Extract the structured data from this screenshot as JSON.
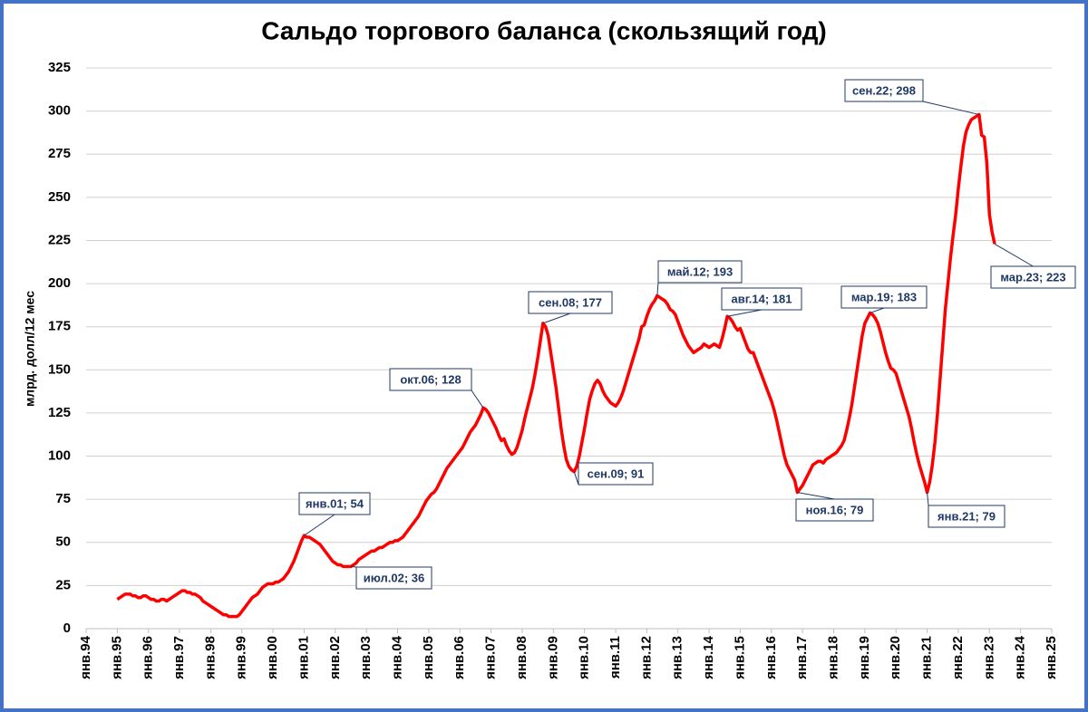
{
  "chart_data": {
    "type": "line",
    "title": "Сальдо торгового баланса (скользящий год)",
    "y_label": "млрд. долл/12 мес",
    "ylim": [
      0,
      325
    ],
    "yticks": [
      0,
      25,
      50,
      75,
      100,
      125,
      150,
      175,
      200,
      225,
      250,
      275,
      300,
      325
    ],
    "grid": true,
    "categories": [
      "янв.94",
      null,
      null,
      null,
      null,
      null,
      null,
      null,
      null,
      null,
      null,
      null,
      "янв.95",
      null,
      null,
      null,
      null,
      null,
      null,
      null,
      null,
      null,
      null,
      null,
      "янв.96",
      null,
      null,
      null,
      null,
      null,
      null,
      null,
      null,
      null,
      null,
      null,
      "янв.97",
      null,
      null,
      null,
      null,
      null,
      null,
      null,
      null,
      null,
      null,
      null,
      "янв.98",
      null,
      null,
      null,
      null,
      null,
      null,
      null,
      null,
      null,
      null,
      null,
      "янв.99",
      null,
      null,
      null,
      null,
      null,
      null,
      null,
      null,
      null,
      null,
      null,
      "янв.00",
      null,
      null,
      null,
      null,
      null,
      null,
      null,
      null,
      null,
      null,
      null,
      "янв.01",
      null,
      null,
      null,
      null,
      null,
      null,
      null,
      null,
      null,
      null,
      null,
      "янв.02",
      null,
      null,
      null,
      null,
      null,
      null,
      null,
      null,
      null,
      null,
      null,
      "янв.03",
      null,
      null,
      null,
      null,
      null,
      null,
      null,
      null,
      null,
      null,
      null,
      "янв.04",
      null,
      null,
      null,
      null,
      null,
      null,
      null,
      null,
      null,
      null,
      null,
      "янв.05",
      null,
      null,
      null,
      null,
      null,
      null,
      null,
      null,
      null,
      null,
      null,
      "янв.06",
      null,
      null,
      null,
      null,
      null,
      null,
      null,
      null,
      null,
      null,
      null,
      "янв.07",
      null,
      null,
      null,
      null,
      null,
      null,
      null,
      null,
      null,
      null,
      null,
      "янв.08",
      null,
      null,
      null,
      null,
      null,
      null,
      null,
      null,
      null,
      null,
      null,
      "янв.09",
      null,
      null,
      null,
      null,
      null,
      null,
      null,
      null,
      null,
      null,
      null,
      "янв.10",
      null,
      null,
      null,
      null,
      null,
      null,
      null,
      null,
      null,
      null,
      null,
      "янв.11",
      null,
      null,
      null,
      null,
      null,
      null,
      null,
      null,
      null,
      null,
      null,
      "янв.12",
      null,
      null,
      null,
      null,
      null,
      null,
      null,
      null,
      null,
      null,
      null,
      "янв.13",
      null,
      null,
      null,
      null,
      null,
      null,
      null,
      null,
      null,
      null,
      null,
      "янв.14",
      null,
      null,
      null,
      null,
      null,
      null,
      null,
      null,
      null,
      null,
      null,
      "янв.15",
      null,
      null,
      null,
      null,
      null,
      null,
      null,
      null,
      null,
      null,
      null,
      "янв.16",
      null,
      null,
      null,
      null,
      null,
      null,
      null,
      null,
      null,
      null,
      null,
      "янв.17",
      null,
      null,
      null,
      null,
      null,
      null,
      null,
      null,
      null,
      null,
      null,
      "янв.18",
      null,
      null,
      null,
      null,
      null,
      null,
      null,
      null,
      null,
      null,
      null,
      "янв.19",
      null,
      null,
      null,
      null,
      null,
      null,
      null,
      null,
      null,
      null,
      null,
      "янв.20",
      null,
      null,
      null,
      null,
      null,
      null,
      null,
      null,
      null,
      null,
      null,
      "янв.21",
      null,
      null,
      null,
      null,
      null,
      null,
      null,
      null,
      null,
      null,
      null,
      "янв.22",
      null,
      null,
      null,
      null,
      null,
      null,
      null,
      null,
      null,
      null,
      null,
      "янв.23",
      null,
      null,
      null,
      null,
      null,
      null,
      null,
      null,
      null,
      null,
      null,
      "янв.24",
      null,
      null,
      null,
      null,
      null,
      null,
      null,
      null,
      null,
      null,
      null,
      "янв.25"
    ],
    "series": [
      {
        "color": "#ff0000",
        "values": [
          null,
          null,
          null,
          null,
          null,
          null,
          null,
          null,
          null,
          null,
          null,
          null,
          17,
          18,
          19,
          20,
          20,
          20,
          19,
          19,
          18,
          18,
          19,
          19,
          18,
          17,
          17,
          16,
          16,
          17,
          17,
          16,
          17,
          18,
          19,
          20,
          21,
          22,
          22,
          21,
          21,
          20,
          20,
          19,
          18,
          16,
          15,
          14,
          13,
          12,
          11,
          10,
          9,
          8,
          8,
          7,
          7,
          7,
          7,
          8,
          10,
          12,
          14,
          16,
          18,
          19,
          20,
          22,
          24,
          25,
          26,
          26,
          26,
          27,
          27,
          28,
          29,
          31,
          33,
          36,
          39,
          43,
          47,
          51,
          54,
          53,
          53,
          52,
          51,
          50,
          49,
          47,
          45,
          43,
          41,
          39,
          38,
          37,
          37,
          36,
          36,
          36,
          36,
          37,
          38,
          40,
          41,
          42,
          43,
          44,
          45,
          45,
          46,
          47,
          47,
          48,
          49,
          50,
          50,
          51,
          51,
          52,
          53,
          55,
          57,
          59,
          61,
          63,
          65,
          68,
          71,
          74,
          76,
          78,
          79,
          81,
          84,
          87,
          90,
          93,
          95,
          97,
          99,
          101,
          103,
          105,
          108,
          111,
          114,
          116,
          118,
          121,
          124,
          128,
          127,
          125,
          122,
          119,
          116,
          112,
          109,
          110,
          106,
          103,
          101,
          102,
          105,
          110,
          115,
          122,
          128,
          134,
          140,
          148,
          157,
          167,
          177,
          175,
          170,
          160,
          150,
          140,
          128,
          116,
          106,
          98,
          94,
          92,
          91,
          94,
          100,
          108,
          116,
          125,
          133,
          138,
          142,
          144,
          142,
          138,
          135,
          133,
          131,
          130,
          129,
          131,
          134,
          138,
          143,
          148,
          153,
          158,
          163,
          168,
          175,
          176,
          181,
          185,
          188,
          190,
          193,
          192,
          191,
          190,
          188,
          185,
          184,
          182,
          178,
          174,
          170,
          167,
          164,
          162,
          160,
          161,
          162,
          163,
          165,
          164,
          163,
          164,
          165,
          164,
          163,
          168,
          174,
          181,
          180,
          178,
          175,
          173,
          174,
          170,
          166,
          162,
          160,
          160,
          156,
          152,
          148,
          144,
          140,
          136,
          132,
          127,
          121,
          114,
          107,
          100,
          95,
          92,
          89,
          86,
          79,
          81,
          83,
          86,
          89,
          92,
          95,
          96,
          97,
          97,
          96,
          98,
          99,
          100,
          101,
          102,
          104,
          106,
          109,
          115,
          122,
          130,
          140,
          150,
          160,
          170,
          177,
          180,
          183,
          182,
          180,
          177,
          172,
          166,
          160,
          155,
          151,
          150,
          148,
          143,
          138,
          133,
          128,
          123,
          116,
          108,
          101,
          95,
          90,
          85,
          79,
          85,
          95,
          108,
          125,
          145,
          165,
          185,
          200,
          215,
          228,
          240,
          255,
          268,
          280,
          288,
          292,
          295,
          296,
          297,
          298,
          286,
          285,
          270,
          240,
          230,
          223,
          null,
          null,
          null,
          null,
          null,
          null,
          null,
          null,
          null,
          null,
          null,
          null,
          null,
          null,
          null,
          null,
          null,
          null,
          null,
          null,
          null,
          null
        ]
      }
    ],
    "annotations": [
      {
        "label": "янв.01; 54",
        "value": 54
      },
      {
        "label": "июл.02; 36",
        "value": 36
      },
      {
        "label": "окт.06; 128",
        "value": 128
      },
      {
        "label": "сен.08; 177",
        "value": 177
      },
      {
        "label": "сен.09; 91",
        "value": 91
      },
      {
        "label": "май.12; 193",
        "value": 193
      },
      {
        "label": "авг.14; 181",
        "value": 181
      },
      {
        "label": "ноя.16; 79",
        "value": 79
      },
      {
        "label": "мар.19; 183",
        "value": 183
      },
      {
        "label": "янв.21; 79",
        "value": 79
      },
      {
        "label": "сен.22; 298",
        "value": 298
      },
      {
        "label": "мар.23; 223",
        "value": 223
      }
    ]
  }
}
